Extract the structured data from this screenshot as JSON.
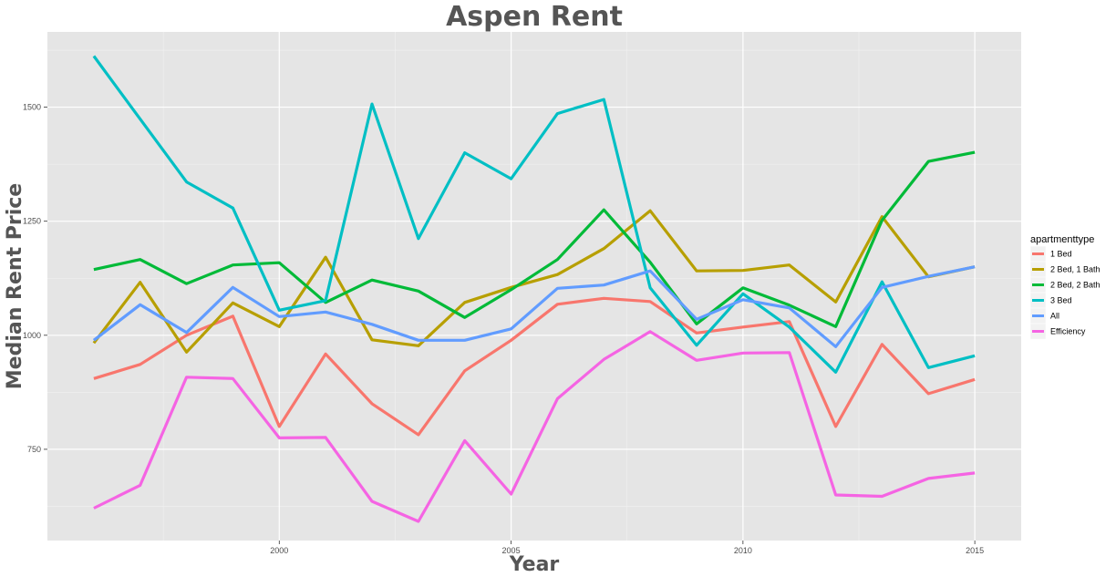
{
  "chart_data": {
    "type": "line",
    "title": "Aspen Rent",
    "xlabel": "Year",
    "ylabel": "Median Rent Price",
    "x": [
      1996,
      1997,
      1998,
      1999,
      2000,
      2001,
      2002,
      2003,
      2004,
      2005,
      2006,
      2007,
      2008,
      2009,
      2010,
      2011,
      2012,
      2013,
      2014,
      2015
    ],
    "xlim": [
      1995,
      2016
    ],
    "ylim": [
      550,
      1665
    ],
    "x_ticks": [
      2000,
      2005,
      2010,
      2015
    ],
    "y_ticks": [
      750,
      1000,
      1250,
      1500
    ],
    "grid": true,
    "legend_title": "apartmenttype",
    "legend_position": "right",
    "series": [
      {
        "name": "1 Bed",
        "color": "#F8766D",
        "values": [
          905,
          936,
          1000,
          1042,
          800,
          959,
          850,
          782,
          922,
          989,
          1068,
          1081,
          1074,
          1005,
          1018,
          1030,
          800,
          980,
          872,
          903
        ]
      },
      {
        "name": "2 Bed, 1 Bath",
        "color": "#B79F00",
        "values": [
          983,
          1116,
          963,
          1071,
          1019,
          1171,
          990,
          977,
          1072,
          1105,
          1133,
          1190,
          1273,
          1141,
          1142,
          1154,
          1073,
          1260,
          1128,
          1150
        ]
      },
      {
        "name": "2 Bed, 2 Bath",
        "color": "#00BA38",
        "values": [
          1144,
          1166,
          1113,
          1154,
          1159,
          1072,
          1121,
          1097,
          1039,
          1100,
          1166,
          1275,
          1160,
          1025,
          1104,
          1066,
          1019,
          1252,
          1381,
          1401
        ]
      },
      {
        "name": "3 Bed",
        "color": "#00BFC4",
        "values": [
          1612,
          1474,
          1336,
          1279,
          1055,
          1076,
          1507,
          1212,
          1400,
          1343,
          1486,
          1517,
          1104,
          978,
          1091,
          1018,
          919,
          1117,
          929,
          955
        ]
      },
      {
        "name": "All",
        "color": "#619CFF",
        "values": [
          989,
          1067,
          1006,
          1105,
          1041,
          1051,
          1024,
          989,
          989,
          1014,
          1103,
          1110,
          1141,
          1035,
          1078,
          1060,
          975,
          1105,
          1129,
          1150
        ]
      },
      {
        "name": "Efficiency",
        "color": "#F564E3",
        "values": [
          621,
          671,
          908,
          905,
          775,
          776,
          636,
          592,
          769,
          652,
          861,
          947,
          1008,
          945,
          961,
          962,
          650,
          647,
          686,
          698
        ]
      }
    ]
  }
}
